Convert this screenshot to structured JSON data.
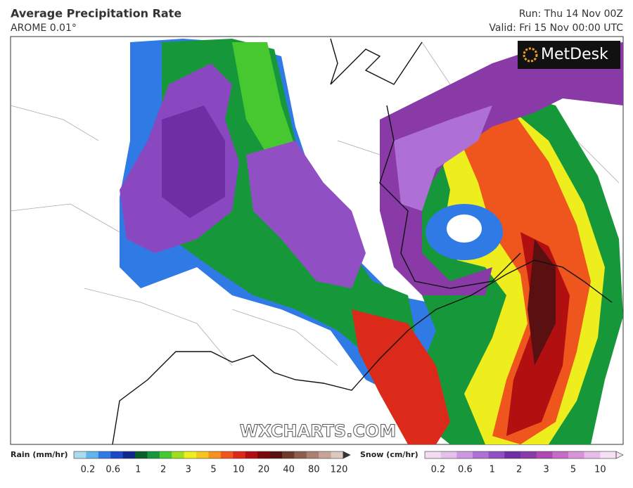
{
  "header": {
    "title": "Average Precipitation Rate",
    "subtitle": "AROME 0.01°",
    "run": "Run: Thu 14 Nov 00Z",
    "valid": "Valid: Fri 15 Nov 00:00 UTC"
  },
  "map": {
    "logo": "MetDesk",
    "watermark": "WXCHARTS.COM"
  },
  "legend": {
    "rain": {
      "label": "Rain (mm/hr)",
      "ticks": [
        0.2,
        0.6,
        1,
        2,
        3,
        5,
        10,
        20,
        40,
        80,
        120
      ],
      "colors": [
        "#a8dcec",
        "#62b4ea",
        "#2f7ae4",
        "#1d48c8",
        "#10288a",
        "#0a5e28",
        "#16983a",
        "#48c830",
        "#9ede22",
        "#eeee1e",
        "#f8c41e",
        "#f6901e",
        "#ee561e",
        "#dc2a1a",
        "#b21010",
        "#7a0808",
        "#5a1010",
        "#6e3a2a",
        "#8e5e4c",
        "#aa8070",
        "#c6a498",
        "#ddc8c0"
      ]
    },
    "snow": {
      "label": "Snow (cm/hr)",
      "ticks": [
        0.2,
        0.6,
        1,
        2,
        3,
        5,
        10
      ],
      "colors": [
        "#f2dcf2",
        "#e4c0ea",
        "#cc98e2",
        "#ae70d4",
        "#9050c4",
        "#6e2ea4",
        "#8a3aa6",
        "#ae48b2",
        "#c46cc6",
        "#d894d8",
        "#e8bce8",
        "#f6e0f6"
      ]
    }
  }
}
